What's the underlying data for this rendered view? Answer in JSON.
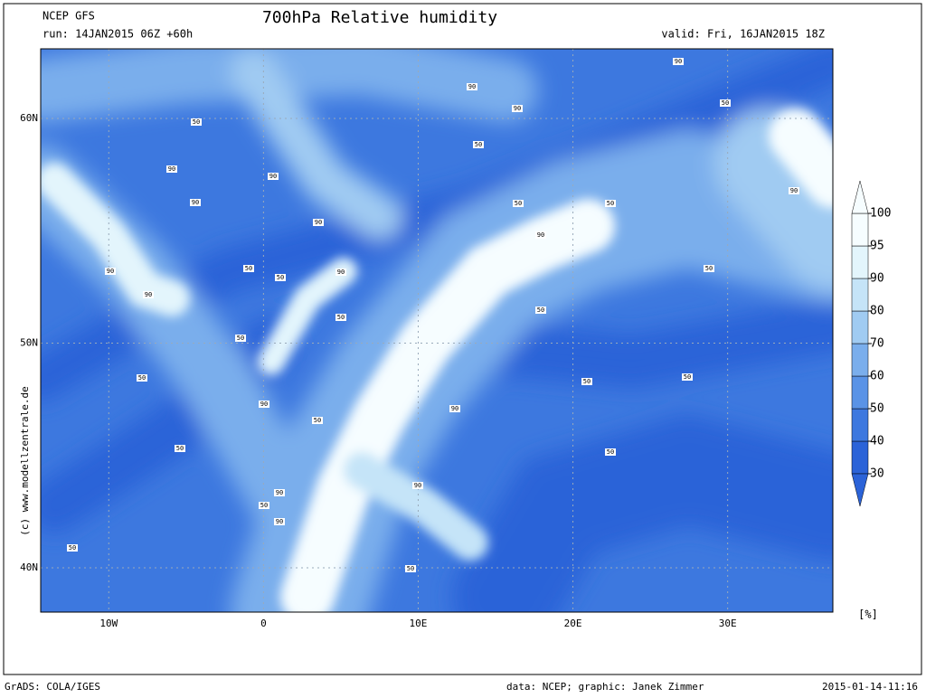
{
  "header": {
    "model": "NCEP GFS",
    "run": "run: 14JAN2015 06Z +60h",
    "title": "700hPa Relative humidity",
    "valid": "valid: Fri, 16JAN2015 18Z"
  },
  "map": {
    "lon_range": [
      -14.4,
      36.8
    ],
    "lat_range": [
      38.03,
      63.1
    ],
    "lon_ticks": [
      {
        "value": -10,
        "label": "10W"
      },
      0,
      {
        "value": 10,
        "label": "10E"
      },
      {
        "value": 20,
        "label": "20E"
      },
      {
        "value": 30,
        "label": "30E"
      }
    ],
    "lat_ticks": [
      {
        "value": 40,
        "label": "40N"
      },
      {
        "value": 50,
        "label": "50N"
      },
      {
        "value": 60,
        "label": "60N"
      }
    ],
    "contour_labels": [
      "50",
      "90",
      "90",
      "90",
      "90",
      "90",
      "90",
      "50",
      "50",
      "90",
      "50",
      "50",
      "50",
      "90",
      "50",
      "50",
      "90",
      "50",
      "90",
      "50",
      "50",
      "90",
      "90",
      "50",
      "50",
      "50",
      "50",
      "50",
      "50",
      "90",
      "50",
      "50",
      "90",
      "90",
      "90",
      "50",
      "90"
    ]
  },
  "colorbar": {
    "levels": [
      30,
      40,
      50,
      60,
      70,
      80,
      90,
      95,
      100
    ],
    "colors": [
      "#2b63d8",
      "#3d78df",
      "#5a93e6",
      "#7aaeec",
      "#a0cbf2",
      "#c5e4f8",
      "#e3f5fc",
      "#f6fdff"
    ],
    "unit": "[%]"
  },
  "side_credit": "(c) www.modellzentrale.de",
  "footer": {
    "software": "GrADS: COLA/IGES",
    "credit": "data: NCEP; graphic: Janek Zimmer",
    "timestamp": "2015-01-14-11:16"
  }
}
